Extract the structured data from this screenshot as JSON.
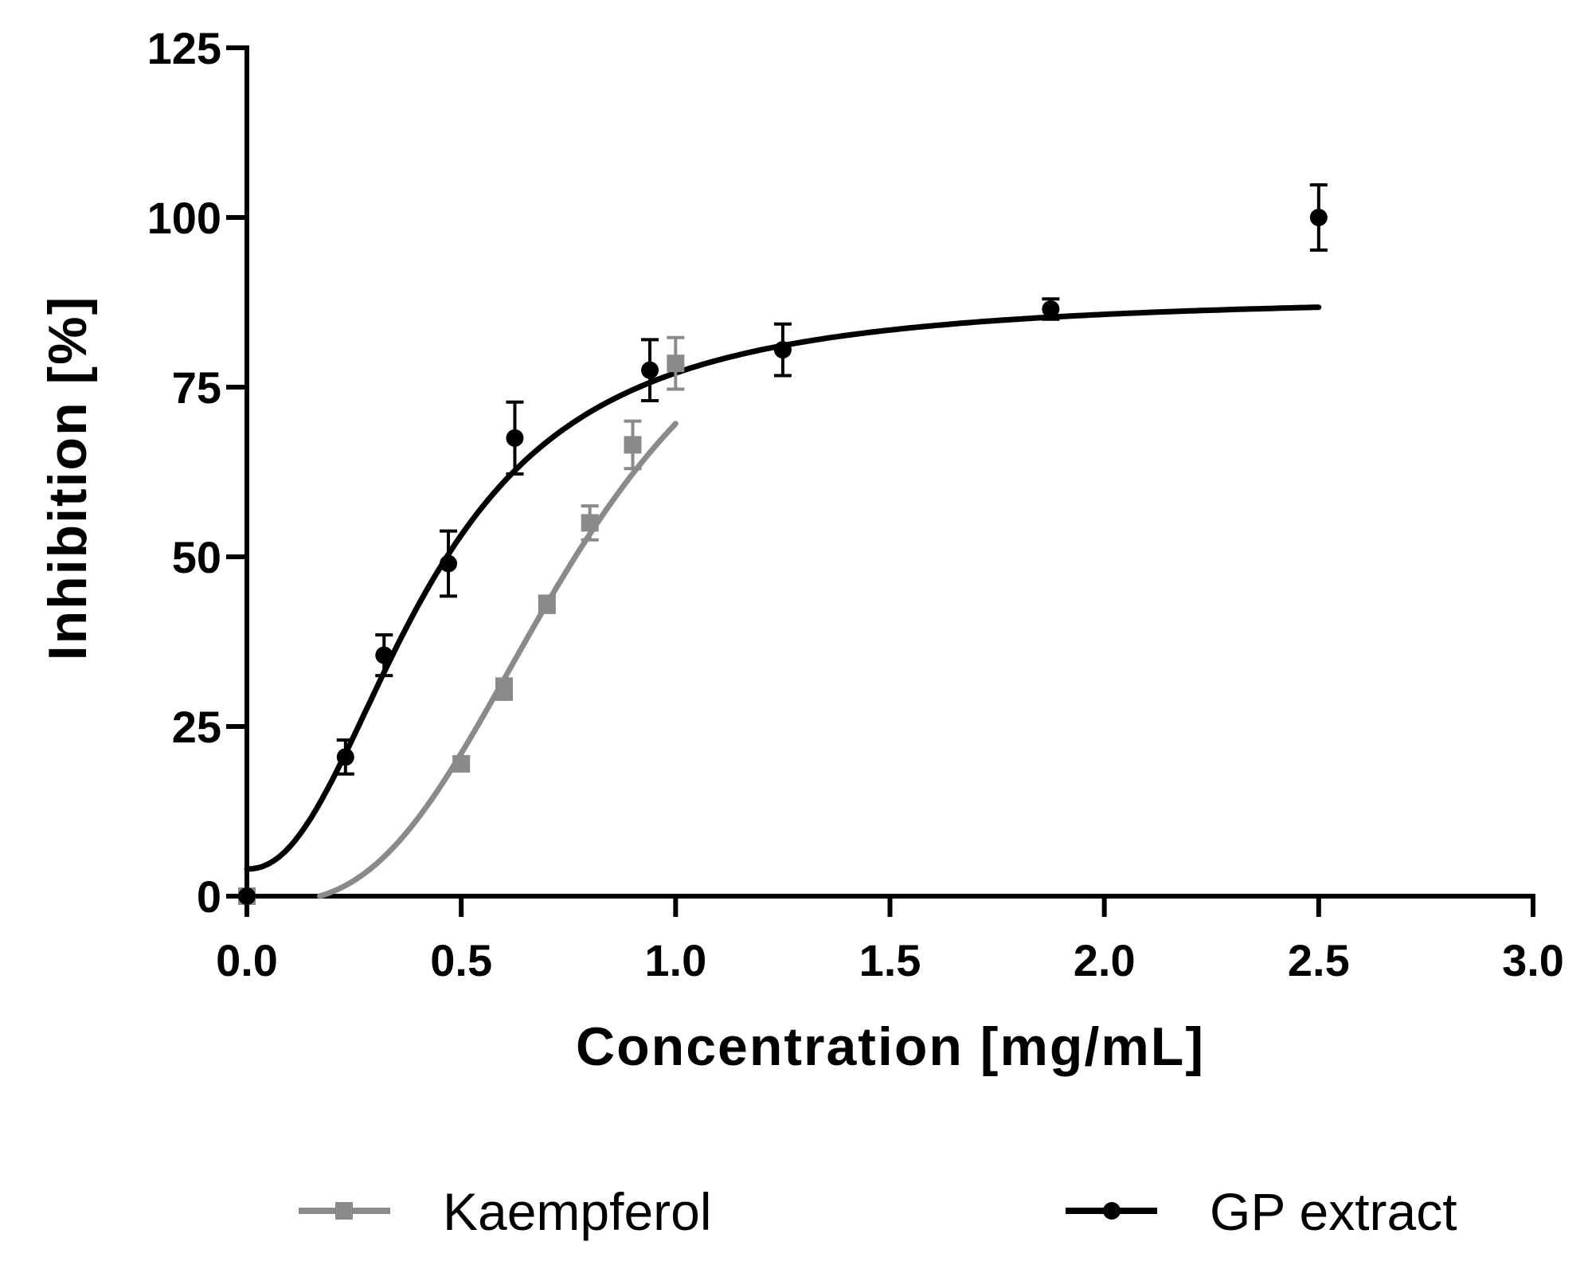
{
  "chart_data": {
    "type": "scatter",
    "title": "",
    "xlabel": "Concentration [mg/mL]",
    "ylabel": "Inhibition [%]",
    "xlim": [
      0,
      3
    ],
    "ylim": [
      0,
      125
    ],
    "x_ticks": [
      "0.0",
      "0.5",
      "1.0",
      "1.5",
      "2.0",
      "2.5",
      "3.0"
    ],
    "x_tick_values": [
      0,
      0.5,
      1.0,
      1.5,
      2.0,
      2.5,
      3.0
    ],
    "y_ticks": [
      "0",
      "25",
      "50",
      "75",
      "100",
      "125"
    ],
    "y_tick_values": [
      0,
      25,
      50,
      75,
      100,
      125
    ],
    "grid": false,
    "legend_position": "bottom",
    "series": [
      {
        "name": "Kaempferol",
        "color": "#8a8a8a",
        "marker": "square",
        "x": [
          0,
          0.5,
          0.6,
          0.7,
          0.8,
          0.9,
          1.0
        ],
        "y": [
          0,
          19.5,
          30.5,
          43,
          55,
          66.5,
          78.5
        ],
        "error": [
          0,
          1,
          1.5,
          1.2,
          2.5,
          3.5,
          3.8
        ],
        "fit_curve": {
          "model": "sigmoid",
          "bottom": 0,
          "top": 100,
          "ec50": 0.77,
          "hill": 3.0,
          "x_range": [
            0.17,
            1.0
          ]
        }
      },
      {
        "name": "GP extract",
        "color": "#000000",
        "marker": "circle",
        "x": [
          0,
          0.23,
          0.32,
          0.47,
          0.625,
          0.94,
          1.25,
          1.875,
          2.5
        ],
        "y": [
          0,
          20.5,
          35.5,
          49,
          67.5,
          77.5,
          80.5,
          86.5,
          100
        ],
        "error": [
          0,
          2.5,
          3,
          4.8,
          5.3,
          4.5,
          3.8,
          1.5,
          4.8
        ],
        "fit_curve": {
          "model": "sigmoid",
          "bottom": 0,
          "top": 88.5,
          "ec50": 0.43,
          "hill": 2.2,
          "x_range": [
            0,
            2.5
          ]
        }
      }
    ]
  }
}
